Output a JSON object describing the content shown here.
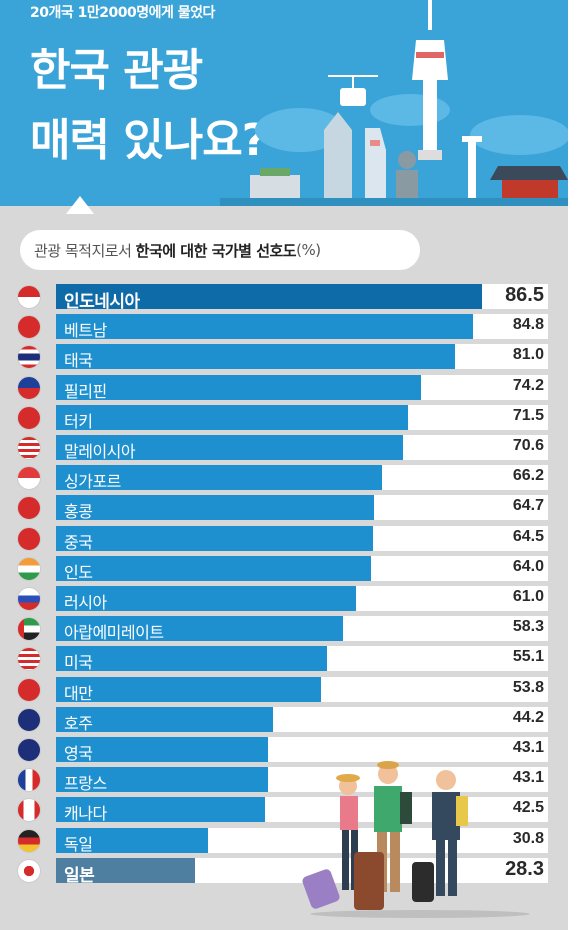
{
  "header": {
    "subtitle": "20개국 1만2000명에게 물었다",
    "title_line_1": "한국 관광",
    "title_line_2": "매력 있나요?"
  },
  "caption": {
    "prefix": "관광 목적지로서 ",
    "bold": "한국에 대한 국가별 선호도",
    "suffix": "(%)"
  },
  "colors": {
    "bar": "#1e90d0",
    "bar_top": "#0f6aa8",
    "bar_last": "#4e7fa0",
    "header_bg": "#3aa3d8"
  },
  "chart_data": {
    "type": "bar",
    "orientation": "horizontal",
    "title": "관광 목적지로서 한국에 대한 국가별 선호도(%)",
    "categories": [
      "인도네시아",
      "베트남",
      "태국",
      "필리핀",
      "터키",
      "말레이시아",
      "싱가포르",
      "홍콩",
      "중국",
      "인도",
      "러시아",
      "아랍에미레이트",
      "미국",
      "대만",
      "호주",
      "영국",
      "프랑스",
      "캐나다",
      "독일",
      "일본"
    ],
    "values": [
      86.5,
      84.8,
      81.0,
      74.2,
      71.5,
      70.6,
      66.2,
      64.7,
      64.5,
      64.0,
      61.0,
      58.3,
      55.1,
      53.8,
      44.2,
      43.1,
      43.1,
      42.5,
      30.8,
      28.3
    ],
    "value_labels": [
      "86.5",
      "84.8",
      "81.0",
      "74.2",
      "71.5",
      "70.6",
      "66.2",
      "64.7",
      "64.5",
      "64.0",
      "61.0",
      "58.3",
      "55.1",
      "53.8",
      "44.2",
      "43.1",
      "43.1",
      "42.5",
      "30.8",
      "28.3"
    ],
    "flag_icons": [
      "indonesia-flag-icon",
      "vietnam-flag-icon",
      "thailand-flag-icon",
      "philippines-flag-icon",
      "turkey-flag-icon",
      "malaysia-flag-icon",
      "singapore-flag-icon",
      "hongkong-flag-icon",
      "china-flag-icon",
      "india-flag-icon",
      "russia-flag-icon",
      "uae-flag-icon",
      "usa-flag-icon",
      "taiwan-flag-icon",
      "australia-flag-icon",
      "uk-flag-icon",
      "france-flag-icon",
      "canada-flag-icon",
      "germany-flag-icon",
      "japan-flag-icon"
    ],
    "xlim": [
      0,
      100
    ],
    "grid": false,
    "legend": "none"
  }
}
